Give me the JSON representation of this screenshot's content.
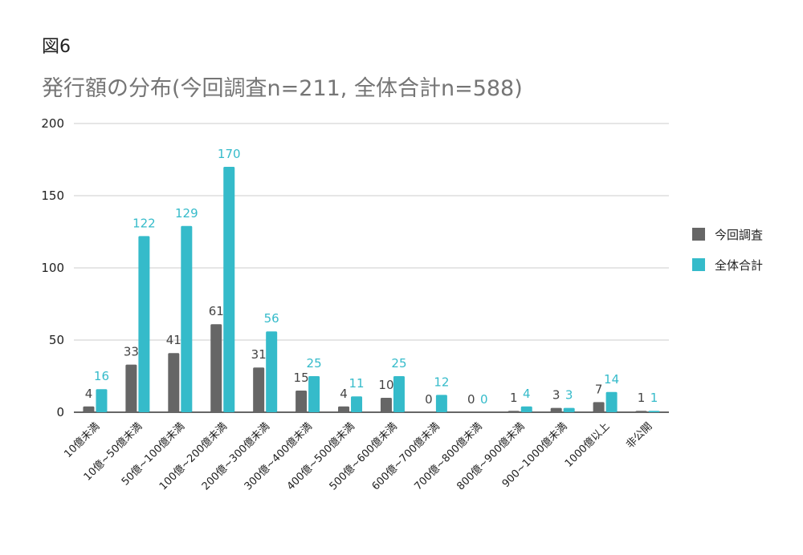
{
  "figure_label": "図6",
  "colors": {
    "series1": "#666666",
    "series2": "#35BBCA",
    "grid": "#cccccc",
    "axis": "#333333",
    "ticktext": "#222222"
  },
  "chart_data": {
    "type": "bar",
    "title": "発行額の分布(今回調査n=211, 全体合計n=588)",
    "xlabel": "",
    "ylabel": "",
    "ylim": [
      0,
      200
    ],
    "yticks": [
      "0",
      "50",
      "100",
      "150",
      "200"
    ],
    "grid": true,
    "legend_position": "right",
    "categories": [
      "10億未満",
      "10億~50億未満",
      "50億~100億未満",
      "100億~200億未満",
      "200億~300億未満",
      "300億~400億未満",
      "400億~500億未満",
      "500億~600億未満",
      "600億~700億未満",
      "700億~800億未満",
      "800億~900億未満",
      "900~1000億未満",
      "1000億以上",
      "非公開"
    ],
    "series": [
      {
        "name": "今回調査",
        "values": [
          4,
          33,
          41,
          61,
          31,
          15,
          4,
          10,
          0,
          0,
          1,
          3,
          7,
          1
        ]
      },
      {
        "name": "全体合計",
        "values": [
          16,
          122,
          129,
          170,
          56,
          25,
          11,
          25,
          12,
          0,
          4,
          3,
          14,
          1
        ]
      }
    ]
  }
}
